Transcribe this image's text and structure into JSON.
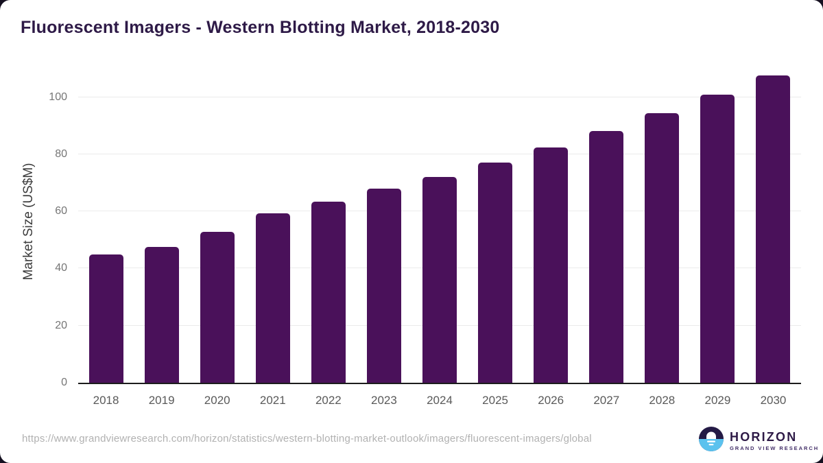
{
  "page": {
    "title": "Fluorescent Imagers - Western Blotting Market, 2018-2030",
    "source_url": "https://www.grandviewresearch.com/horizon/statistics/western-blotting-market-outlook/imagers/fluorescent-imagers/global"
  },
  "logo": {
    "name": "HORIZON",
    "subtitle": "GRAND VIEW RESEARCH",
    "mark_top_color": "#241a45",
    "mark_bottom_color": "#5bc2ee"
  },
  "chart_data": {
    "type": "bar",
    "title": "Fluorescent Imagers - Western Blotting Market, 2018-2030",
    "categories": [
      "2018",
      "2019",
      "2020",
      "2021",
      "2022",
      "2023",
      "2024",
      "2025",
      "2026",
      "2027",
      "2028",
      "2029",
      "2030"
    ],
    "values": [
      45.0,
      47.6,
      52.9,
      59.3,
      63.4,
      67.9,
      72.1,
      77.2,
      82.5,
      88.2,
      94.3,
      100.8,
      107.5
    ],
    "xlabel": "",
    "ylabel": "Market Size (US$M)",
    "yticks": [
      0,
      20,
      40,
      60,
      80,
      100
    ],
    "ylim": [
      0,
      110
    ],
    "bar_color": "#4a115a",
    "grid": "horizontal",
    "legend": "none"
  }
}
